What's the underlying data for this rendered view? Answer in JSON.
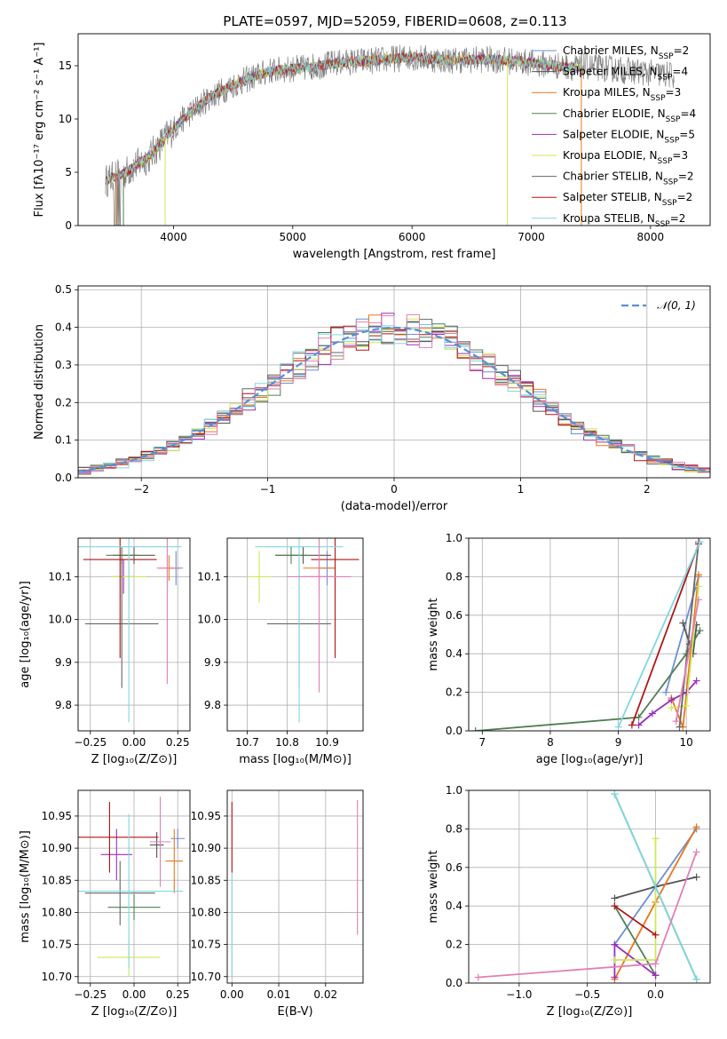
{
  "figure_title": "PLATE=0597, MJD=52059, FIBERID=0608, z=0.113",
  "colors": {
    "Chabrier MILES": "#6c8fd6",
    "Salpeter MILES": "#555555",
    "Kroupa MILES": "#e8771c",
    "Chabrier ELODIE": "#4f7f52",
    "Salpeter ELODIE": "#9b2fbd",
    "Kroupa ELODIE": "#cde85a",
    "Chabrier STELIB": "#666666",
    "Salpeter STELIB": "#b01515",
    "Kroupa STELIB": "#7fd8e0",
    "extra": "#e27fb4",
    "normal": "#5b8fd6",
    "observed": "#808080"
  },
  "chart_data": [
    {
      "id": "spectrum",
      "type": "line",
      "title": "PLATE=0597, MJD=52059, FIBERID=0608, z=0.113",
      "xlabel": "wavelength [Angstrom, rest frame]",
      "ylabel": "Flux [fλ10⁻¹⁷ erg cm⁻² s⁻¹ A⁻¹]",
      "xlim": [
        3200,
        8500
      ],
      "ylim": [
        0,
        18
      ],
      "xticks": [
        4000,
        5000,
        6000,
        7000,
        8000
      ],
      "yticks": [
        0,
        5,
        10,
        15
      ],
      "grid": false,
      "legend_position": "upper-right",
      "legend": [
        {
          "label": "Chabrier MILES, N",
          "sub": "SSP",
          "tail": "=2",
          "color_key": "Chabrier MILES"
        },
        {
          "label": "Salpeter MILES, N",
          "sub": "SSP",
          "tail": "=4",
          "color_key": "Salpeter MILES"
        },
        {
          "label": "Kroupa MILES, N",
          "sub": "SSP",
          "tail": "=3",
          "color_key": "Kroupa MILES"
        },
        {
          "label": "Chabrier ELODIE, N",
          "sub": "SSP",
          "tail": "=4",
          "color_key": "Chabrier ELODIE"
        },
        {
          "label": "Salpeter ELODIE, N",
          "sub": "SSP",
          "tail": "=5",
          "color_key": "Salpeter ELODIE"
        },
        {
          "label": "Kroupa ELODIE, N",
          "sub": "SSP",
          "tail": "=3",
          "color_key": "Kroupa ELODIE"
        },
        {
          "label": "Chabrier STELIB, N",
          "sub": "SSP",
          "tail": "=2",
          "color_key": "Chabrier STELIB"
        },
        {
          "label": "Salpeter STELIB, N",
          "sub": "SSP",
          "tail": "=2",
          "color_key": "Salpeter STELIB"
        },
        {
          "label": "Kroupa STELIB, N",
          "sub": "SSP",
          "tail": "=2",
          "color_key": "Kroupa STELIB"
        }
      ],
      "continuum": {
        "x": [
          3430,
          3600,
          3800,
          3950,
          4100,
          4300,
          4500,
          4800,
          5100,
          5400,
          5700,
          6000,
          6300,
          6600,
          6900,
          7200,
          7420
        ],
        "y": [
          4.2,
          5.0,
          6.5,
          8.5,
          10.2,
          12.0,
          13.2,
          14.5,
          14.8,
          15.3,
          15.5,
          15.8,
          15.5,
          15.6,
          15.4,
          15.0,
          14.8
        ]
      },
      "observed_range": [
        3430,
        8200
      ],
      "model_range": [
        3430,
        7420
      ]
    },
    {
      "id": "residuals",
      "type": "step",
      "xlabel": "(data-model)/error",
      "ylabel": "Normed distribution",
      "xlim": [
        -2.5,
        2.5
      ],
      "ylim": [
        0,
        0.51
      ],
      "xticks": [
        -2,
        -1,
        0,
        1,
        2
      ],
      "yticks": [
        0.0,
        0.1,
        0.2,
        0.3,
        0.4,
        0.5
      ],
      "grid": true,
      "legend": "𝒩(0, 1)",
      "legend_position": "upper-right",
      "bin_width": 0.1,
      "bin_start": -2.5,
      "series_color_keys": [
        "Chabrier MILES",
        "Salpeter MILES",
        "Kroupa MILES",
        "Chabrier ELODIE",
        "Salpeter ELODIE",
        "Kroupa ELODIE",
        "Chabrier STELIB",
        "Salpeter STELIB",
        "Kroupa STELIB",
        "extra"
      ]
    },
    {
      "id": "age-vs-Z",
      "type": "errorbar",
      "xlabel": "Z [log₁₀(Z/Z⊙)]",
      "ylabel": "age  [log₁₀(age/yr)]",
      "xlim": [
        -0.32,
        0.32
      ],
      "ylim": [
        9.74,
        10.19
      ],
      "xticks": [
        -0.25,
        0.0,
        0.25
      ],
      "xticklabels": [
        "−0.25",
        "0.00",
        "0.25"
      ],
      "yticks": [
        9.8,
        9.9,
        10.0,
        10.1
      ],
      "grid": true,
      "points": [
        {
          "c": "Chabrier MILES",
          "x": 0.24,
          "xe": 0.04,
          "y": 10.12,
          "ye": 0.04
        },
        {
          "c": "Salpeter MILES",
          "x": 0.0,
          "xe": 0.12,
          "y": 10.15,
          "ye": 0.02
        },
        {
          "c": "Kroupa MILES",
          "x": 0.2,
          "xe": 0.06,
          "y": 10.12,
          "ye": 0.03
        },
        {
          "c": "Chabrier ELODIE",
          "x": -0.07,
          "xe": 0.09,
          "y": 10.15,
          "ye": 0.02
        },
        {
          "c": "Salpeter ELODIE",
          "x": -0.06,
          "xe": 0.06,
          "y": 10.1,
          "ye": 0.04
        },
        {
          "c": "Kroupa ELODIE",
          "x": -0.03,
          "xe": 0.1,
          "y": 10.1,
          "ye": 0.06
        },
        {
          "c": "Chabrier STELIB",
          "x": -0.07,
          "xe": 0.21,
          "y": 9.99,
          "ye": 0.15
        },
        {
          "c": "Salpeter STELIB",
          "x": -0.08,
          "xe": 0.21,
          "y": 10.14,
          "ye": 0.23
        },
        {
          "c": "Kroupa STELIB",
          "x": -0.03,
          "xe": 0.3,
          "y": 10.17,
          "ye": 0.41
        },
        {
          "c": "extra",
          "x": 0.19,
          "xe": 0.06,
          "y": 10.12,
          "ye": 0.27
        }
      ]
    },
    {
      "id": "age-vs-mass",
      "type": "errorbar",
      "xlabel": "mass [log₁₀(M/M⊙)]",
      "ylabel": "",
      "xlim": [
        10.65,
        10.99
      ],
      "ylim": [
        9.74,
        10.19
      ],
      "xticks": [
        10.7,
        10.8,
        10.9
      ],
      "yticks": [
        9.8,
        9.9,
        10.0,
        10.1
      ],
      "grid": true,
      "points": [
        {
          "c": "Chabrier MILES",
          "x": 10.9,
          "xe": 0.02,
          "y": 10.12,
          "ye": 0.04
        },
        {
          "c": "Salpeter MILES",
          "x": 10.84,
          "xe": 0.07,
          "y": 10.15,
          "ye": 0.02
        },
        {
          "c": "Kroupa MILES",
          "x": 10.88,
          "xe": 0.04,
          "y": 10.12,
          "ye": 0.03
        },
        {
          "c": "Chabrier ELODIE",
          "x": 10.81,
          "xe": 0.04,
          "y": 10.15,
          "ye": 0.02
        },
        {
          "c": "Salpeter ELODIE",
          "x": 10.88,
          "xe": 0.04,
          "y": 10.1,
          "ye": 0.04
        },
        {
          "c": "Kroupa ELODIE",
          "x": 10.73,
          "xe": 0.03,
          "y": 10.1,
          "ye": 0.06
        },
        {
          "c": "Chabrier STELIB",
          "x": 10.83,
          "xe": 0.08,
          "y": 9.99,
          "ye": 0.15
        },
        {
          "c": "Salpeter STELIB",
          "x": 10.92,
          "xe": 0.06,
          "y": 10.14,
          "ye": 0.23
        },
        {
          "c": "Kroupa STELIB",
          "x": 10.83,
          "xe": 0.11,
          "y": 10.17,
          "ye": 0.41
        },
        {
          "c": "extra",
          "x": 10.88,
          "xe": 0.08,
          "y": 10.1,
          "ye": 0.27
        }
      ]
    },
    {
      "id": "massweight-vs-age",
      "type": "line",
      "xlabel": "age  [log₁₀(age/yr)]",
      "ylabel": "mass weight",
      "xlim": [
        6.8,
        10.35
      ],
      "ylim": [
        0.0,
        1.0
      ],
      "xticks": [
        7,
        8,
        9,
        10
      ],
      "yticks": [
        0.0,
        0.2,
        0.4,
        0.6,
        0.8,
        1.0
      ],
      "grid": true,
      "lines": [
        {
          "c": "Chabrier MILES",
          "x": [
            9.7,
            10.18
          ],
          "y": [
            0.2,
            0.8
          ]
        },
        {
          "c": "Salpeter MILES",
          "x": [
            9.95,
            10.05,
            10.1,
            10.15
          ],
          "y": [
            0.56,
            0.45,
            0.4,
            0.55
          ]
        },
        {
          "c": "Kroupa MILES",
          "x": [
            9.78,
            9.95,
            10.18
          ],
          "y": [
            0.17,
            0.02,
            0.81
          ]
        },
        {
          "c": "Chabrier ELODIE",
          "x": [
            6.9,
            9.3,
            10.0,
            10.2
          ],
          "y": [
            0.0,
            0.07,
            0.4,
            0.52
          ]
        },
        {
          "c": "Salpeter ELODIE",
          "x": [
            9.3,
            9.5,
            9.78,
            10.0,
            10.15
          ],
          "y": [
            0.03,
            0.09,
            0.16,
            0.2,
            0.26
          ]
        },
        {
          "c": "Kroupa ELODIE",
          "x": [
            9.78,
            10.0,
            10.18
          ],
          "y": [
            0.12,
            0.13,
            0.75
          ]
        },
        {
          "c": "Chabrier STELIB",
          "x": [
            9.9,
            10.18
          ],
          "y": [
            0.02,
            0.98
          ]
        },
        {
          "c": "Salpeter STELIB",
          "x": [
            9.2,
            10.18
          ],
          "y": [
            0.03,
            0.97
          ]
        },
        {
          "c": "Kroupa STELIB",
          "x": [
            9.0,
            10.2
          ],
          "y": [
            0.02,
            0.98
          ]
        },
        {
          "c": "extra",
          "x": [
            9.85,
            10.18
          ],
          "y": [
            0.05,
            0.68
          ]
        }
      ]
    },
    {
      "id": "mass-vs-Z",
      "type": "errorbar",
      "xlabel": "Z [log₁₀(Z/Z⊙)]",
      "ylabel": "mass [log₁₀(M/M⊙)]",
      "xlim": [
        -0.32,
        0.32
      ],
      "ylim": [
        10.69,
        10.99
      ],
      "xticks": [
        -0.25,
        0.0,
        0.25
      ],
      "xticklabels": [
        "−0.25",
        "0.00",
        "0.25"
      ],
      "yticks": [
        10.7,
        10.75,
        10.8,
        10.85,
        10.9,
        10.95
      ],
      "grid": true,
      "points": [
        {
          "c": "Chabrier MILES",
          "x": 0.25,
          "xe": 0.04,
          "y": 10.915,
          "ye": 0.015
        },
        {
          "c": "Salpeter MILES",
          "x": 0.13,
          "xe": 0.04,
          "y": 10.905,
          "ye": 0.02
        },
        {
          "c": "Kroupa MILES",
          "x": 0.23,
          "xe": 0.05,
          "y": 10.88,
          "ye": 0.05
        },
        {
          "c": "Chabrier ELODIE",
          "x": 0.0,
          "xe": 0.15,
          "y": 10.808,
          "ye": 0.02
        },
        {
          "c": "Salpeter ELODIE",
          "x": -0.1,
          "xe": 0.09,
          "y": 10.89,
          "ye": 0.04
        },
        {
          "c": "Kroupa ELODIE",
          "x": -0.03,
          "xe": 0.18,
          "y": 10.73,
          "ye": 0.03
        },
        {
          "c": "Chabrier STELIB",
          "x": -0.08,
          "xe": 0.2,
          "y": 10.83,
          "ye": 0.05
        },
        {
          "c": "Salpeter STELIB",
          "x": -0.14,
          "xe": 0.28,
          "y": 10.917,
          "ye": 0.055
        },
        {
          "c": "Kroupa STELIB",
          "x": -0.03,
          "xe": 0.31,
          "y": 10.833,
          "ye": 0.12
        },
        {
          "c": "extra",
          "x": 0.15,
          "xe": 0.06,
          "y": 10.91,
          "ye": 0.07
        }
      ]
    },
    {
      "id": "mass-vs-EBV",
      "type": "errorbar",
      "xlabel": "E(B-V)",
      "ylabel": "",
      "xlim": [
        -0.001,
        0.028
      ],
      "ylim": [
        10.69,
        10.99
      ],
      "xticks": [
        0.0,
        0.01,
        0.02
      ],
      "xticklabels": [
        "0.00",
        "0.01",
        "0.02"
      ],
      "yticks": [
        10.7,
        10.75,
        10.8,
        10.85,
        10.9,
        10.95
      ],
      "grid": true,
      "points": [
        {
          "c": "Salpeter STELIB",
          "x": 0.0,
          "xe": 0.0,
          "y": 10.917,
          "ye": 0.055
        },
        {
          "c": "Kroupa STELIB",
          "x": 0.0,
          "xe": 0.0,
          "y": 10.78,
          "ye": 0.08
        },
        {
          "c": "extra",
          "x": 0.0268,
          "xe": 0.0,
          "y": 10.87,
          "ye": 0.105
        }
      ]
    },
    {
      "id": "massweight-vs-Z",
      "type": "line",
      "xlabel": "Z [log₁₀(Z/Z⊙)]",
      "ylabel": "mass weight",
      "xlim": [
        -1.37,
        0.4
      ],
      "ylim": [
        0.0,
        1.0
      ],
      "xticks": [
        -1.0,
        -0.5,
        0.0
      ],
      "xticklabels": [
        "−1.0",
        "−0.5",
        "0.0"
      ],
      "yticks": [
        0.0,
        0.2,
        0.4,
        0.6,
        0.8,
        1.0
      ],
      "grid": true,
      "lines": [
        {
          "c": "Chabrier MILES",
          "x": [
            -0.3,
            0.3
          ],
          "y": [
            0.2,
            0.8
          ]
        },
        {
          "c": "Salpeter MILES",
          "x": [
            -0.3,
            0.0,
            0.3
          ],
          "y": [
            0.44,
            0.5,
            0.55
          ]
        },
        {
          "c": "Kroupa MILES",
          "x": [
            -0.3,
            0.0,
            0.3
          ],
          "y": [
            0.02,
            0.42,
            0.81
          ]
        },
        {
          "c": "Chabrier ELODIE",
          "x": [
            -0.3,
            0.0
          ],
          "y": [
            0.4,
            0.04
          ]
        },
        {
          "c": "Salpeter ELODIE",
          "x": [
            -0.3,
            -0.3,
            0.0,
            0.0
          ],
          "y": [
            0.03,
            0.2,
            0.04,
            0.04
          ]
        },
        {
          "c": "Kroupa ELODIE",
          "x": [
            -0.3,
            0.0,
            0.0
          ],
          "y": [
            0.12,
            0.12,
            0.75
          ]
        },
        {
          "c": "Chabrier STELIB",
          "x": [
            -0.3,
            0.3
          ],
          "y": [
            0.98,
            0.02
          ]
        },
        {
          "c": "Salpeter STELIB",
          "x": [
            -0.3,
            0.0
          ],
          "y": [
            0.4,
            0.25
          ]
        },
        {
          "c": "Kroupa STELIB",
          "x": [
            -0.3,
            0.3
          ],
          "y": [
            0.98,
            0.02
          ]
        },
        {
          "c": "extra",
          "x": [
            -1.3,
            0.0,
            0.3
          ],
          "y": [
            0.03,
            0.1,
            0.68
          ]
        }
      ]
    }
  ]
}
